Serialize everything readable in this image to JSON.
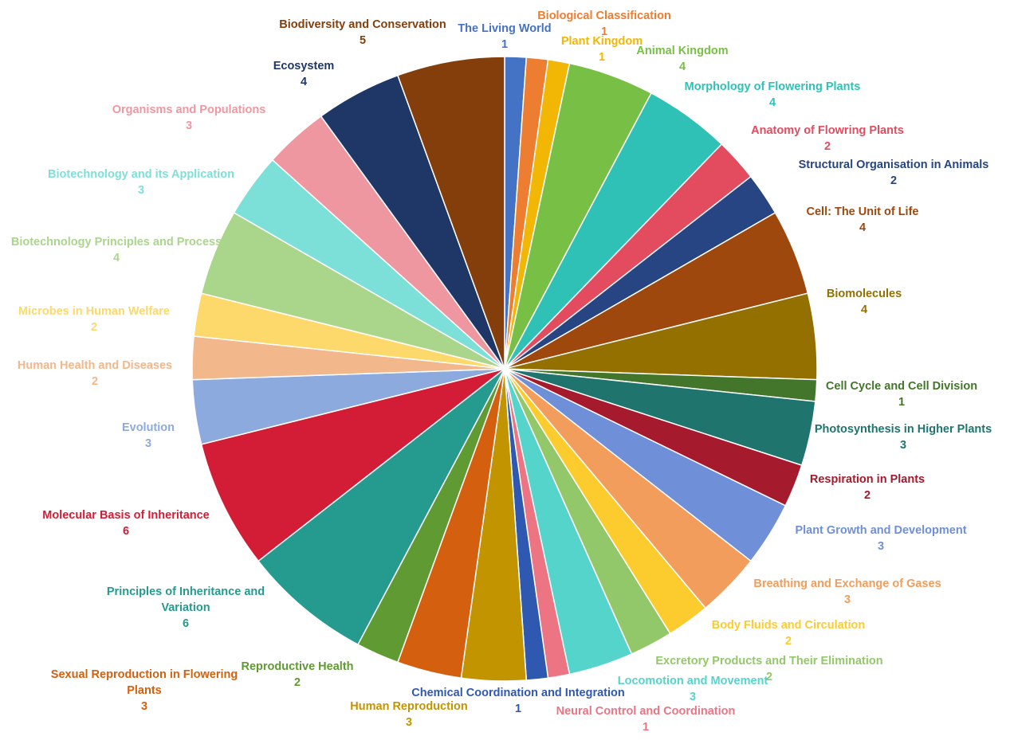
{
  "chart_data": {
    "type": "pie",
    "title": "",
    "categories": [
      "The Living World",
      "Biological Classification",
      "Plant Kingdom",
      "Animal Kingdom",
      "Morphology of Flowering Plants",
      "Anatomy of Flowring Plants",
      "Structural Organisation in Animals",
      "Cell: The Unit of Life",
      "Biomolecules",
      "Cell Cycle and Cell Division",
      "Photosynthesis in Higher Plants",
      "Respiration in Plants",
      "Plant Growth and Development",
      "Breathing and Exchange of Gases",
      "Body Fluids and Circulation",
      "Excretory Products and Their Elimination",
      "Locomotion and Movement",
      "Neural Control and Coordination",
      "Chemical Coordination and Integration",
      "Human Reproduction",
      "Sexual Reproduction in Flowering Plants",
      "Reproductive Health",
      "Principles of Inheritance and Variation",
      "Molecular Basis of Inheritance",
      "Evolution",
      "Human Health and Diseases",
      "Microbes in Human Welfare",
      "Biotechnology Principles and Process",
      "Biotechnology and its Application",
      "Organisms and Populations",
      "Ecosystem",
      "Biodiversity and Conservation"
    ],
    "values": [
      1,
      1,
      1,
      4,
      4,
      2,
      2,
      4,
      4,
      1,
      3,
      2,
      3,
      3,
      2,
      2,
      3,
      1,
      1,
      3,
      3,
      2,
      6,
      6,
      3,
      2,
      2,
      4,
      3,
      3,
      4,
      5
    ],
    "colors": [
      "#4472C4",
      "#ED7D31",
      "#F2B705",
      "#77BF45",
      "#2FC1B5",
      "#E34B5F",
      "#264582",
      "#9E480E",
      "#937000",
      "#43762B",
      "#1F746E",
      "#A51A2C",
      "#6F8FD8",
      "#F29D5C",
      "#FCCB2E",
      "#93C86A",
      "#55D4CB",
      "#EC7483",
      "#2F58B0",
      "#C29500",
      "#D4600F",
      "#5F9A33",
      "#259A8E",
      "#D31D36",
      "#8DAADF",
      "#F2B78B",
      "#FCD96A",
      "#AAD68C",
      "#7DE0D8",
      "#EF97A1",
      "#1F3767",
      "#843E0C"
    ],
    "data_labels": "category-and-value",
    "legend": "none"
  }
}
